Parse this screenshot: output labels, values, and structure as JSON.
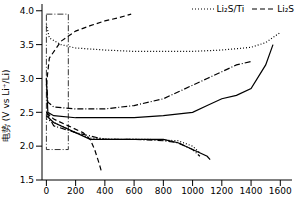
{
  "chart_data": {
    "type": "line",
    "y_label": "电势 (V vs Li⁺/Li)",
    "xlim": [
      -30,
      1680
    ],
    "xticks": [
      0,
      200,
      400,
      600,
      800,
      1000,
      1200,
      1400,
      1600
    ],
    "ylim": [
      1.5,
      4.1
    ],
    "yticks": [
      {
        "value": 1.5,
        "label": "1.5"
      },
      {
        "value": 2,
        "label": "2.0"
      },
      {
        "value": 2.5,
        "label": "2.5"
      },
      {
        "value": 3,
        "label": "3.0"
      },
      {
        "value": 3.5,
        "label": "3.5"
      },
      {
        "value": 4,
        "label": "4.0"
      }
    ],
    "legend": "upper right",
    "highlight_box": {
      "x": [
        0,
        150
      ],
      "y": [
        1.95,
        3.95
      ]
    },
    "series": [
      {
        "name": "Li₂S/Ti",
        "color": "#000000",
        "line_style": "dotted",
        "x": [
          0,
          20,
          100,
          200,
          400,
          600,
          800,
          1000,
          1200,
          1400,
          1500,
          1600,
          1600,
          0,
          100,
          200,
          300,
          500,
          700,
          900,
          1000,
          1050
        ],
        "values": [
          3.8,
          3.6,
          3.5,
          3.45,
          3.42,
          3.4,
          3.4,
          3.4,
          3.42,
          3.46,
          3.53,
          3.68,
          null,
          2.4,
          2.3,
          2.2,
          2.12,
          2.1,
          2.1,
          2.08,
          2.0,
          1.9
        ]
      },
      {
        "name": "Li₂S",
        "color": "#000000",
        "line_style": "dashed",
        "x": [
          0,
          20,
          100,
          200,
          300,
          400,
          500,
          580,
          580,
          0,
          50,
          150,
          250,
          300,
          330,
          360,
          380
        ],
        "values": [
          2.9,
          3.3,
          3.55,
          3.7,
          3.78,
          3.85,
          3.9,
          3.95,
          null,
          2.5,
          2.4,
          2.3,
          2.2,
          2.1,
          1.95,
          1.75,
          1.6
        ]
      },
      {
        "color": "#000000",
        "line_style": "dashdot",
        "x": [
          0,
          10,
          50,
          200,
          400,
          600,
          800,
          900,
          1000,
          1100,
          1200,
          1300,
          1400,
          1400,
          0,
          50,
          200,
          400,
          600,
          800,
          900,
          1000,
          1050
        ],
        "values": [
          3.0,
          2.65,
          2.58,
          2.55,
          2.55,
          2.6,
          2.7,
          2.8,
          2.9,
          3.0,
          3.1,
          3.2,
          3.25,
          null,
          2.5,
          2.3,
          2.2,
          2.1,
          2.1,
          2.08,
          2.05,
          1.95,
          1.85
        ]
      },
      {
        "color": "#000000",
        "line_style": "solid",
        "x": [
          0,
          10,
          50,
          200,
          400,
          600,
          800,
          1000,
          1100,
          1200,
          1300,
          1400,
          1500,
          1550,
          1550,
          0,
          50,
          200,
          300,
          500,
          800,
          900,
          1000,
          1100,
          1120
        ],
        "values": [
          3.0,
          2.5,
          2.45,
          2.42,
          2.42,
          2.42,
          2.45,
          2.5,
          2.6,
          2.7,
          2.75,
          2.85,
          3.2,
          3.5,
          null,
          2.45,
          2.35,
          2.2,
          2.1,
          2.1,
          2.1,
          2.05,
          1.95,
          1.85,
          1.8
        ]
      }
    ]
  }
}
